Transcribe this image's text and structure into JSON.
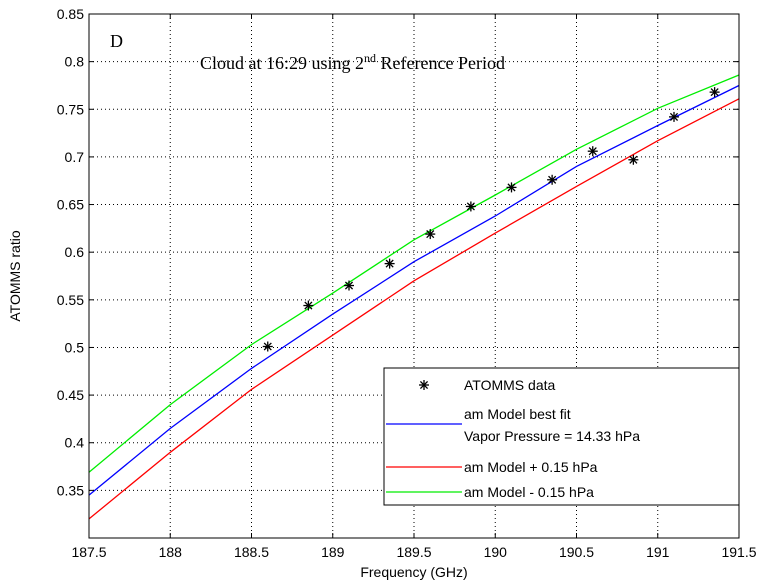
{
  "chart_data": {
    "type": "line",
    "xlabel": "Frequency (GHz)",
    "ylabel": "ATOMMS ratio",
    "xlim": [
      187.5,
      191.5
    ],
    "ylim": [
      0.3,
      0.85
    ],
    "x_ticks": [
      187.5,
      188,
      188.5,
      189,
      189.5,
      190,
      190.5,
      191,
      191.5
    ],
    "y_ticks": [
      0.35,
      0.4,
      0.45,
      0.5,
      0.55,
      0.6,
      0.65,
      0.7,
      0.75,
      0.8,
      0.85
    ],
    "grid": true,
    "legend_position": "bottom-right",
    "annotations": {
      "panel_letter": "D",
      "title_part1": "Cloud at 16:29 using 2",
      "title_sup": "nd",
      "title_part2": " Reference Period"
    },
    "scatter": {
      "name": "ATOMMS data",
      "marker": "asterisk",
      "color": "#000000",
      "x": [
        188.6,
        188.85,
        189.1,
        189.35,
        189.6,
        189.85,
        190.1,
        190.35,
        190.6,
        190.85,
        191.1,
        191.35
      ],
      "y": [
        0.501,
        0.544,
        0.565,
        0.588,
        0.619,
        0.648,
        0.668,
        0.676,
        0.706,
        0.697,
        0.742,
        0.768
      ]
    },
    "series": [
      {
        "name": "am Model best fit",
        "legend_line2": " Vapor Pressure = 14.33 hPa",
        "color": "#0000ff",
        "x": [
          187.5,
          188.0,
          188.5,
          189.0,
          189.5,
          190.0,
          190.5,
          191.0,
          191.5
        ],
        "y": [
          0.345,
          0.415,
          0.478,
          0.535,
          0.59,
          0.638,
          0.69,
          0.733,
          0.775
        ]
      },
      {
        "name": "am Model + 0.15 hPa",
        "color": "#ff0000",
        "x": [
          187.5,
          188.0,
          188.5,
          189.0,
          189.5,
          190.0,
          190.5,
          191.0,
          191.5
        ],
        "y": [
          0.32,
          0.39,
          0.456,
          0.513,
          0.57,
          0.62,
          0.669,
          0.717,
          0.761
        ]
      },
      {
        "name": "am Model - 0.15 hPa",
        "color": "#00ee00",
        "x": [
          187.5,
          188.0,
          188.5,
          189.0,
          189.5,
          190.0,
          190.5,
          191.0,
          191.5
        ],
        "y": [
          0.369,
          0.44,
          0.503,
          0.557,
          0.613,
          0.66,
          0.708,
          0.751,
          0.786
        ]
      }
    ]
  }
}
